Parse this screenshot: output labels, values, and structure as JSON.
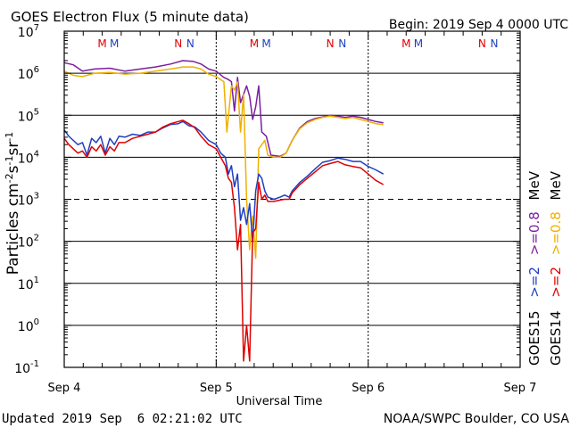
{
  "chart_data": {
    "type": "line",
    "title": "GOES Electron Flux (5 minute data)",
    "begin_label": "Begin: 2019 Sep 4 0000 UTC",
    "xlabel": "Universal Time",
    "ylabel": {
      "prefix": "Particles cm",
      "exp1": "-2",
      "mid1": "s",
      "exp2": "-1",
      "mid2": "sr",
      "exp3": "-1"
    },
    "x_unit": "days since 2019 Sep 4 0000 UTC",
    "xlim": [
      0,
      3
    ],
    "x_ticks": [
      {
        "x": 0,
        "label": "Sep 4"
      },
      {
        "x": 1,
        "label": "Sep 5"
      },
      {
        "x": 2,
        "label": "Sep 6"
      },
      {
        "x": 3,
        "label": "Sep 7"
      }
    ],
    "y_scale": "log10",
    "ylim_log10": [
      -1,
      7
    ],
    "y_ticks": [
      {
        "exp": 7,
        "label": "7"
      },
      {
        "exp": 6,
        "label": "6"
      },
      {
        "exp": 5,
        "label": "5"
      },
      {
        "exp": 4,
        "label": "4"
      },
      {
        "exp": 3,
        "label": "3"
      },
      {
        "exp": 2,
        "label": "2"
      },
      {
        "exp": 1,
        "label": "1"
      },
      {
        "exp": 0,
        "label": "0"
      },
      {
        "exp": -1,
        "label": "-1"
      }
    ],
    "threshold_log10": 3,
    "hline_log10": [
      6,
      5,
      4,
      2,
      1,
      0
    ],
    "markers": [
      {
        "x": 0.25,
        "text": "M",
        "color": "#e00000"
      },
      {
        "x": 0.33,
        "text": "M",
        "color": "#1f3fbf"
      },
      {
        "x": 0.75,
        "text": "N",
        "color": "#e00000"
      },
      {
        "x": 0.83,
        "text": "N",
        "color": "#1f3fbf"
      },
      {
        "x": 1.25,
        "text": "M",
        "color": "#e00000"
      },
      {
        "x": 1.33,
        "text": "M",
        "color": "#1f3fbf"
      },
      {
        "x": 1.75,
        "text": "N",
        "color": "#e00000"
      },
      {
        "x": 1.83,
        "text": "N",
        "color": "#1f3fbf"
      },
      {
        "x": 2.25,
        "text": "M",
        "color": "#e00000"
      },
      {
        "x": 2.33,
        "text": "M",
        "color": "#1f3fbf"
      },
      {
        "x": 2.75,
        "text": "N",
        "color": "#e00000"
      },
      {
        "x": 2.83,
        "text": "N",
        "color": "#1f3fbf"
      }
    ],
    "legend": [
      {
        "satellite": "GOES15",
        "items": [
          {
            "text": ">=2",
            "color": "#1f3fbf"
          },
          {
            "text": ">=0.8",
            "color": "#7a1fa0"
          },
          {
            "text": "MeV",
            "color": "#000000"
          }
        ]
      },
      {
        "satellite": "GOES14",
        "items": [
          {
            "text": ">=2",
            "color": "#e00000"
          },
          {
            "text": ">=0.8",
            "color": "#f0b000"
          },
          {
            "text": "MeV",
            "color": "#000000"
          }
        ]
      }
    ],
    "series": [
      {
        "name": "GOES15 >=0.8 MeV",
        "color": "#7a1fa0",
        "log10_values": true,
        "points": [
          [
            0,
            6.25
          ],
          [
            0.06,
            6.2
          ],
          [
            0.12,
            6.05
          ],
          [
            0.2,
            6.1
          ],
          [
            0.3,
            6.12
          ],
          [
            0.4,
            6.05
          ],
          [
            0.5,
            6.1
          ],
          [
            0.6,
            6.15
          ],
          [
            0.7,
            6.22
          ],
          [
            0.78,
            6.3
          ],
          [
            0.85,
            6.28
          ],
          [
            0.9,
            6.22
          ],
          [
            0.95,
            6.1
          ],
          [
            1.0,
            6.05
          ],
          [
            1.05,
            5.9
          ],
          [
            1.08,
            5.85
          ],
          [
            1.1,
            5.8
          ],
          [
            1.12,
            5.1
          ],
          [
            1.14,
            5.9
          ],
          [
            1.16,
            5.3
          ],
          [
            1.18,
            5.5
          ],
          [
            1.2,
            5.7
          ],
          [
            1.22,
            5.45
          ],
          [
            1.24,
            4.9
          ],
          [
            1.26,
            5.2
          ],
          [
            1.28,
            5.7
          ],
          [
            1.3,
            4.6
          ],
          [
            1.33,
            4.5
          ],
          [
            1.36,
            4.05
          ],
          [
            1.42,
            4.02
          ],
          [
            1.46,
            4.1
          ],
          [
            1.5,
            4.4
          ],
          [
            1.55,
            4.7
          ],
          [
            1.6,
            4.85
          ],
          [
            1.65,
            4.92
          ],
          [
            1.7,
            4.96
          ],
          [
            1.75,
            5.0
          ],
          [
            1.8,
            4.98
          ],
          [
            1.85,
            4.95
          ],
          [
            1.9,
            4.98
          ],
          [
            1.95,
            4.95
          ],
          [
            2.0,
            4.9
          ],
          [
            2.05,
            4.85
          ],
          [
            2.1,
            4.82
          ]
        ]
      },
      {
        "name": "GOES14 >=0.8 MeV",
        "color": "#f0b000",
        "log10_values": true,
        "points": [
          [
            0,
            6.05
          ],
          [
            0.06,
            5.95
          ],
          [
            0.12,
            5.92
          ],
          [
            0.2,
            6.0
          ],
          [
            0.3,
            6.02
          ],
          [
            0.4,
            5.98
          ],
          [
            0.5,
            6.0
          ],
          [
            0.6,
            6.05
          ],
          [
            0.7,
            6.1
          ],
          [
            0.78,
            6.15
          ],
          [
            0.85,
            6.15
          ],
          [
            0.9,
            6.1
          ],
          [
            0.95,
            5.98
          ],
          [
            1.0,
            5.92
          ],
          [
            1.05,
            5.8
          ],
          [
            1.07,
            4.6
          ],
          [
            1.1,
            5.7
          ],
          [
            1.12,
            5.6
          ],
          [
            1.14,
            5.8
          ],
          [
            1.16,
            4.6
          ],
          [
            1.18,
            5.5
          ],
          [
            1.2,
            3.0
          ],
          [
            1.22,
            1.8
          ],
          [
            1.24,
            2.6
          ],
          [
            1.26,
            1.6
          ],
          [
            1.28,
            4.2
          ],
          [
            1.3,
            4.3
          ],
          [
            1.32,
            4.4
          ],
          [
            1.34,
            4.05
          ],
          [
            1.38,
            4.0
          ],
          [
            1.42,
            4.0
          ],
          [
            1.46,
            4.1
          ],
          [
            1.5,
            4.4
          ],
          [
            1.55,
            4.68
          ],
          [
            1.6,
            4.82
          ],
          [
            1.65,
            4.9
          ],
          [
            1.7,
            4.95
          ],
          [
            1.75,
            4.98
          ],
          [
            1.8,
            4.95
          ],
          [
            1.85,
            4.92
          ],
          [
            1.9,
            4.95
          ],
          [
            1.95,
            4.9
          ],
          [
            2.0,
            4.85
          ],
          [
            2.05,
            4.8
          ],
          [
            2.1,
            4.78
          ]
        ]
      },
      {
        "name": "GOES15 >=2 MeV",
        "color": "#1f3fbf",
        "log10_values": true,
        "points": [
          [
            0,
            4.65
          ],
          [
            0.03,
            4.5
          ],
          [
            0.06,
            4.4
          ],
          [
            0.09,
            4.3
          ],
          [
            0.12,
            4.35
          ],
          [
            0.15,
            4.05
          ],
          [
            0.18,
            4.45
          ],
          [
            0.21,
            4.35
          ],
          [
            0.24,
            4.5
          ],
          [
            0.27,
            4.1
          ],
          [
            0.3,
            4.45
          ],
          [
            0.33,
            4.3
          ],
          [
            0.36,
            4.5
          ],
          [
            0.4,
            4.48
          ],
          [
            0.45,
            4.55
          ],
          [
            0.5,
            4.52
          ],
          [
            0.55,
            4.6
          ],
          [
            0.6,
            4.6
          ],
          [
            0.65,
            4.7
          ],
          [
            0.7,
            4.78
          ],
          [
            0.75,
            4.8
          ],
          [
            0.78,
            4.85
          ],
          [
            0.82,
            4.75
          ],
          [
            0.86,
            4.72
          ],
          [
            0.9,
            4.6
          ],
          [
            0.95,
            4.4
          ],
          [
            1.0,
            4.3
          ],
          [
            1.03,
            4.1
          ],
          [
            1.06,
            4.0
          ],
          [
            1.08,
            3.6
          ],
          [
            1.1,
            3.8
          ],
          [
            1.12,
            3.3
          ],
          [
            1.14,
            3.6
          ],
          [
            1.16,
            2.5
          ],
          [
            1.18,
            2.8
          ],
          [
            1.2,
            2.4
          ],
          [
            1.22,
            2.9
          ],
          [
            1.24,
            2.0
          ],
          [
            1.26,
            3.2
          ],
          [
            1.28,
            3.6
          ],
          [
            1.3,
            3.5
          ],
          [
            1.32,
            3.2
          ],
          [
            1.34,
            3.05
          ],
          [
            1.38,
            3.0
          ],
          [
            1.42,
            3.05
          ],
          [
            1.45,
            3.1
          ],
          [
            1.48,
            3.05
          ],
          [
            1.5,
            3.2
          ],
          [
            1.55,
            3.4
          ],
          [
            1.6,
            3.55
          ],
          [
            1.65,
            3.72
          ],
          [
            1.7,
            3.88
          ],
          [
            1.75,
            3.92
          ],
          [
            1.8,
            3.98
          ],
          [
            1.85,
            3.95
          ],
          [
            1.9,
            3.9
          ],
          [
            1.95,
            3.9
          ],
          [
            2.0,
            3.78
          ],
          [
            2.05,
            3.7
          ],
          [
            2.1,
            3.6
          ]
        ]
      },
      {
        "name": "GOES14 >=2 MeV",
        "color": "#e00000",
        "log10_values": true,
        "points": [
          [
            0,
            4.45
          ],
          [
            0.03,
            4.3
          ],
          [
            0.06,
            4.2
          ],
          [
            0.09,
            4.1
          ],
          [
            0.12,
            4.15
          ],
          [
            0.15,
            4.0
          ],
          [
            0.18,
            4.25
          ],
          [
            0.21,
            4.15
          ],
          [
            0.24,
            4.3
          ],
          [
            0.27,
            4.05
          ],
          [
            0.3,
            4.25
          ],
          [
            0.33,
            4.15
          ],
          [
            0.36,
            4.35
          ],
          [
            0.4,
            4.35
          ],
          [
            0.45,
            4.45
          ],
          [
            0.5,
            4.5
          ],
          [
            0.55,
            4.55
          ],
          [
            0.6,
            4.6
          ],
          [
            0.65,
            4.72
          ],
          [
            0.7,
            4.8
          ],
          [
            0.75,
            4.85
          ],
          [
            0.78,
            4.88
          ],
          [
            0.82,
            4.8
          ],
          [
            0.86,
            4.7
          ],
          [
            0.9,
            4.5
          ],
          [
            0.95,
            4.3
          ],
          [
            1.0,
            4.2
          ],
          [
            1.03,
            4.0
          ],
          [
            1.06,
            3.8
          ],
          [
            1.08,
            3.5
          ],
          [
            1.1,
            3.4
          ],
          [
            1.12,
            2.8
          ],
          [
            1.14,
            1.8
          ],
          [
            1.16,
            2.4
          ],
          [
            1.18,
            -0.85
          ],
          [
            1.2,
            0.0
          ],
          [
            1.22,
            -0.85
          ],
          [
            1.24,
            2.2
          ],
          [
            1.26,
            2.3
          ],
          [
            1.28,
            3.4
          ],
          [
            1.3,
            3.0
          ],
          [
            1.32,
            3.1
          ],
          [
            1.34,
            2.95
          ],
          [
            1.38,
            2.95
          ],
          [
            1.42,
            2.98
          ],
          [
            1.45,
            3.0
          ],
          [
            1.48,
            3.0
          ],
          [
            1.5,
            3.15
          ],
          [
            1.55,
            3.35
          ],
          [
            1.6,
            3.5
          ],
          [
            1.65,
            3.65
          ],
          [
            1.7,
            3.8
          ],
          [
            1.75,
            3.85
          ],
          [
            1.8,
            3.9
          ],
          [
            1.85,
            3.82
          ],
          [
            1.9,
            3.78
          ],
          [
            1.95,
            3.75
          ],
          [
            2.0,
            3.6
          ],
          [
            2.05,
            3.45
          ],
          [
            2.1,
            3.35
          ]
        ]
      }
    ]
  },
  "footer": {
    "updated": "Updated 2019 Sep  6 02:21:02 UTC",
    "credit": "NOAA/SWPC Boulder, CO USA"
  }
}
